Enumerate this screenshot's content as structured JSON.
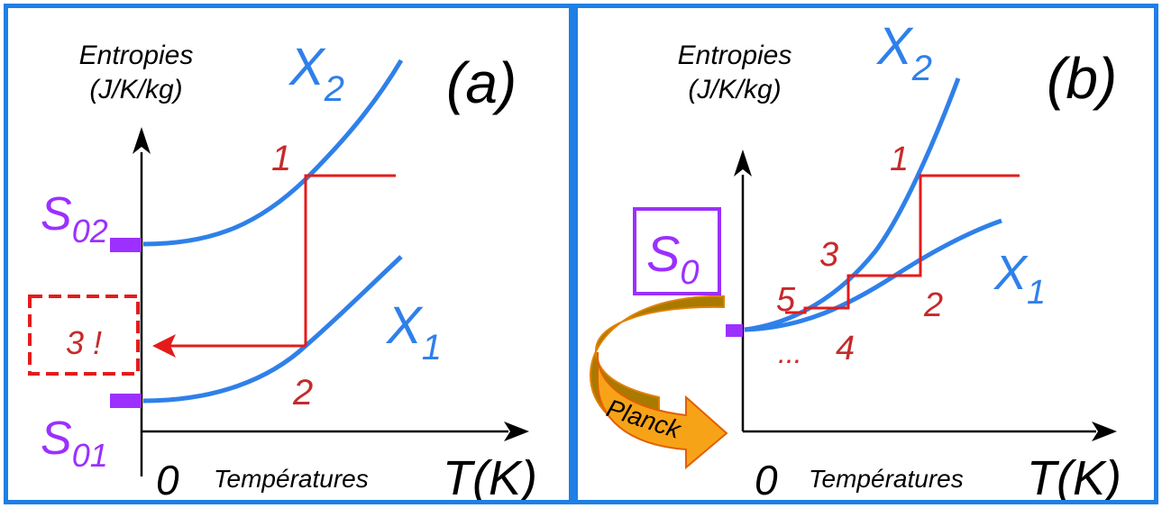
{
  "panel_a": {
    "panel_label": "(a)",
    "y_axis_title_line1": "Entropies",
    "y_axis_title_line2": "(J/K/kg)",
    "x_axis_origin": "0",
    "x_axis_title": "Températures",
    "x_axis_unit": "T(K)",
    "curve_x2_label": "X",
    "curve_x2_sub": "2",
    "curve_x1_label": "X",
    "curve_x1_sub": "1",
    "s02_label": "S",
    "s02_sub": "02",
    "s01_label": "S",
    "s01_sub": "01",
    "point_1": "1",
    "point_2": "2",
    "box_label": "3 !"
  },
  "panel_b": {
    "panel_label": "(b)",
    "y_axis_title_line1": "Entropies",
    "y_axis_title_line2": "(J/K/kg)",
    "x_axis_origin": "0",
    "x_axis_title": "Températures",
    "x_axis_unit": "T(K)",
    "curve_x2_label": "X",
    "curve_x2_sub": "2",
    "curve_x1_label": "X",
    "curve_x1_sub": "1",
    "s0_label": "S",
    "s0_sub": "0",
    "point_1": "1",
    "point_2": "2",
    "point_3": "3",
    "point_4": "4",
    "point_5": "5",
    "ellipsis": "...",
    "planck_label": "Planck"
  },
  "colors": {
    "border_blue": "#1f7fe6",
    "curve_blue": "#2f80ea",
    "red": "#e41b1b",
    "point_red": "#c62a2a",
    "purple": "#9b30ff",
    "brown": "#a87a00",
    "orange": "#f7a318"
  }
}
